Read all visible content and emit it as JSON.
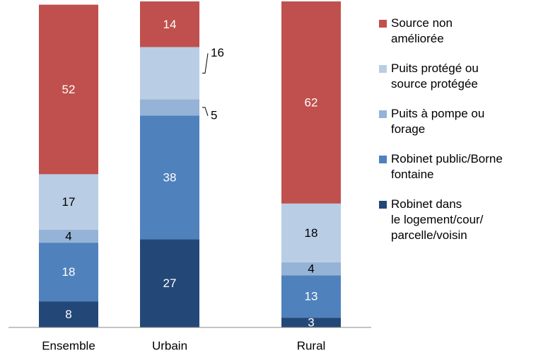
{
  "chart_data": {
    "type": "stacked_bar",
    "categories": [
      "Ensemble",
      "Urbain",
      "Rural"
    ],
    "ylim": [
      0,
      100
    ],
    "series": [
      {
        "name": "Robinet dans\nle logement/cour/\nparcelle/voisin",
        "color": "#234877",
        "values": [
          8,
          27,
          3
        ]
      },
      {
        "name": "Robinet public/Borne\nfontaine",
        "color": "#4f81bd",
        "values": [
          18,
          38,
          13
        ]
      },
      {
        "name": "Puits à pompe ou\nforage",
        "color": "#95b3d7",
        "values": [
          4,
          5,
          4
        ]
      },
      {
        "name": "Puits protégé ou\nsource protégée",
        "color": "#b9cde5",
        "values": [
          17,
          16,
          18
        ]
      },
      {
        "name": "Source non\naméliorée",
        "color": "#c0504d",
        "values": [
          52,
          14,
          62
        ]
      }
    ],
    "legend": "right"
  }
}
